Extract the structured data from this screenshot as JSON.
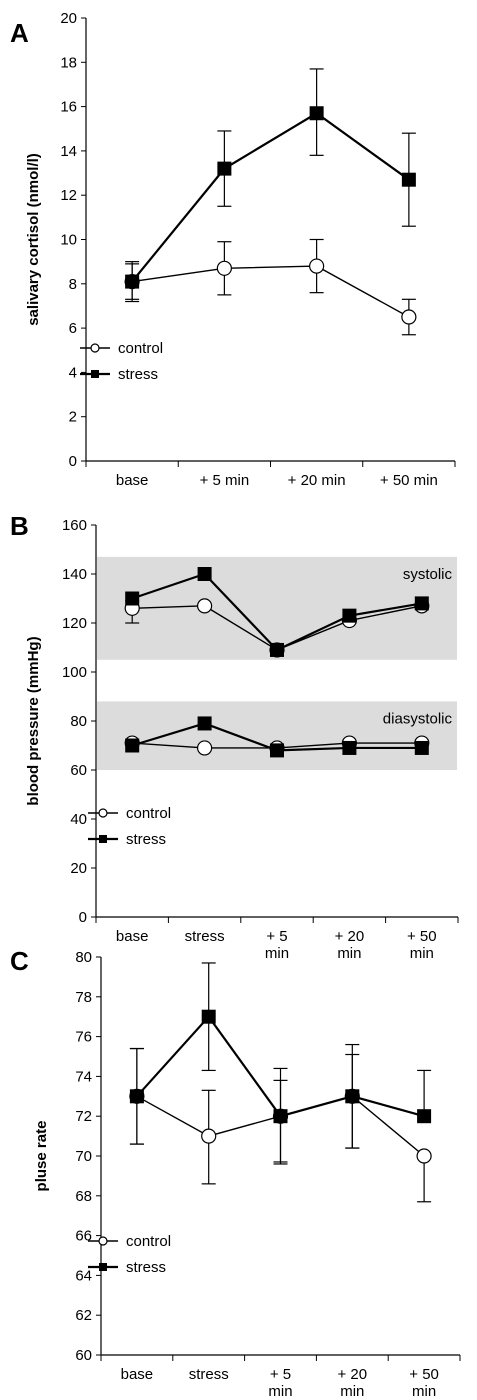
{
  "chart_data": [
    {
      "panel": "A",
      "type": "line",
      "ylabel": "salivary cortisol (nmol/l)",
      "ylim": [
        0,
        20
      ],
      "yticks": [
        0,
        2,
        4,
        6,
        8,
        10,
        12,
        14,
        16,
        18,
        20
      ],
      "categories": [
        "base",
        "+ 5 min",
        "+ 20 min",
        "+ 50 min"
      ],
      "legend": {
        "position": "lower-left"
      },
      "series": [
        {
          "name": "control",
          "marker": "open-circle",
          "values": [
            8.1,
            8.7,
            8.8,
            6.5
          ],
          "err_plus": [
            0.9,
            1.2,
            1.2,
            0.8
          ],
          "err_minus": [
            0.9,
            1.2,
            1.2,
            0.8
          ]
        },
        {
          "name": "stress",
          "marker": "filled-square",
          "values": [
            8.1,
            13.2,
            15.7,
            12.7
          ],
          "err_plus": [
            0.8,
            1.7,
            2.0,
            2.1
          ],
          "err_minus": [
            0.8,
            1.7,
            1.9,
            2.1
          ]
        }
      ]
    },
    {
      "panel": "B",
      "type": "line",
      "ylabel": "blood pressure (mmHg)",
      "ylim": [
        0,
        160
      ],
      "yticks": [
        0,
        20,
        40,
        60,
        80,
        100,
        120,
        140,
        160
      ],
      "categories": [
        "base",
        "stress",
        "+ 5 min",
        "+ 20 min",
        "+ 50 min"
      ],
      "bands": [
        {
          "label": "systolic",
          "range": [
            105,
            147
          ]
        },
        {
          "label": "diasystolic",
          "range": [
            60,
            88
          ]
        }
      ],
      "legend": {
        "position": "lower-left"
      },
      "series": [
        {
          "name": "control",
          "group": "systolic",
          "marker": "open-circle",
          "values": [
            126,
            127,
            109,
            121,
            127
          ],
          "err_plus": [
            3,
            0,
            0,
            0,
            0
          ],
          "err_minus": [
            6,
            0,
            0,
            0,
            0
          ]
        },
        {
          "name": "stress",
          "group": "systolic",
          "marker": "filled-square",
          "values": [
            130,
            140,
            109,
            123,
            128
          ],
          "err_plus": [
            0,
            0,
            0,
            0,
            0
          ],
          "err_minus": [
            0,
            0,
            0,
            0,
            0
          ]
        },
        {
          "name": "control",
          "group": "diasystolic",
          "marker": "open-circle",
          "values": [
            71,
            69,
            69,
            71,
            71
          ],
          "err_plus": [
            0,
            0,
            0,
            0,
            0
          ],
          "err_minus": [
            0,
            0,
            0,
            0,
            0
          ]
        },
        {
          "name": "stress",
          "group": "diasystolic",
          "marker": "filled-square",
          "values": [
            70,
            79,
            68,
            69,
            69
          ],
          "err_plus": [
            0,
            0,
            0,
            0,
            0
          ],
          "err_minus": [
            0,
            0,
            0,
            0,
            0
          ]
        }
      ]
    },
    {
      "panel": "C",
      "type": "line",
      "ylabel": "pluse rate",
      "ylim": [
        60,
        80
      ],
      "yticks": [
        60,
        62,
        64,
        66,
        68,
        70,
        72,
        74,
        76,
        78,
        80
      ],
      "categories": [
        "base",
        "stress",
        "+ 5 min",
        "+ 20 min",
        "+ 50 min"
      ],
      "legend": {
        "position": "lower-left"
      },
      "series": [
        {
          "name": "control",
          "marker": "open-circle",
          "values": [
            73,
            71,
            72,
            73,
            70
          ],
          "err_plus": [
            2.4,
            2.3,
            1.8,
            2.1,
            0
          ],
          "err_minus": [
            2.4,
            2.4,
            2.4,
            2.6,
            2.3
          ]
        },
        {
          "name": "stress",
          "marker": "filled-square",
          "values": [
            73,
            77,
            72,
            73,
            72
          ],
          "err_plus": [
            2.4,
            2.7,
            2.4,
            2.6,
            2.3
          ],
          "err_minus": [
            2.4,
            2.7,
            2.3,
            2.6,
            0
          ]
        }
      ]
    }
  ]
}
